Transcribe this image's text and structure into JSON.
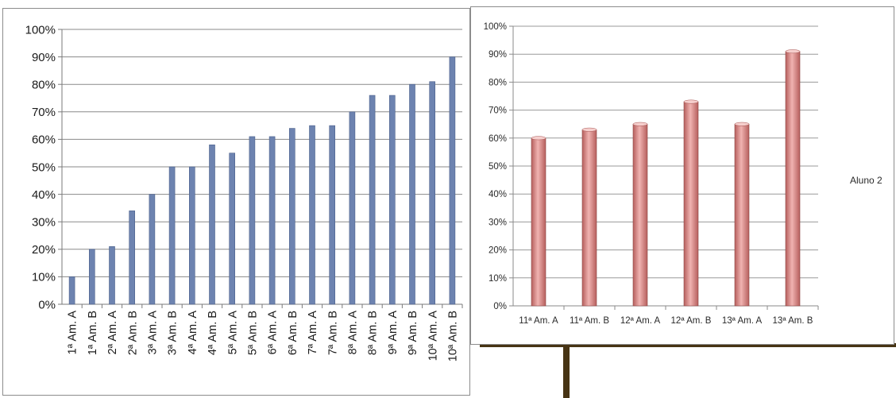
{
  "chart_data": [
    {
      "type": "bar",
      "title": "",
      "xlabel": "",
      "ylabel": "",
      "ylim": [
        0,
        100
      ],
      "y_ticks": [
        "0%",
        "10%",
        "20%",
        "30%",
        "40%",
        "50%",
        "60%",
        "70%",
        "80%",
        "90%",
        "100%"
      ],
      "grid": true,
      "legend": "none",
      "bar_color": "#6d83b0",
      "categories": [
        "1ª Am. A",
        "1ª Am. B",
        "2ª Am. A",
        "2ª Am. B",
        "3ª Am. A",
        "3ª Am. B",
        "4ª Am. A",
        "4ª Am. B",
        "5ª Am. A",
        "5ª Am. B",
        "6ª Am. A",
        "6ª Am. B",
        "7ª Am. A",
        "7ª Am. B",
        "8ª Am. A",
        "8ª Am. B",
        "9ª Am. A",
        "9ª Am. B",
        "10ª Am. A",
        "10ª Am. B"
      ],
      "values": [
        10,
        20,
        21,
        34,
        40,
        50,
        50,
        58,
        55,
        61,
        61,
        64,
        65,
        65,
        70,
        76,
        76,
        80,
        81,
        90
      ]
    },
    {
      "type": "bar",
      "title": "",
      "xlabel": "",
      "ylabel": "",
      "ylim": [
        0,
        100
      ],
      "y_ticks": [
        "0%",
        "10%",
        "20%",
        "30%",
        "40%",
        "50%",
        "60%",
        "70%",
        "80%",
        "90%",
        "100%"
      ],
      "grid": true,
      "legend": "right",
      "bar_color": "#d98b89",
      "categories": [
        "11ª Am. A",
        "11ª Am. B",
        "12ª Am. A",
        "12ª Am. B",
        "13ª Am. A",
        "13ª Am. B"
      ],
      "series": [
        {
          "name": "Aluno 2",
          "values": [
            60,
            63,
            65,
            73,
            65,
            91
          ]
        }
      ]
    }
  ]
}
